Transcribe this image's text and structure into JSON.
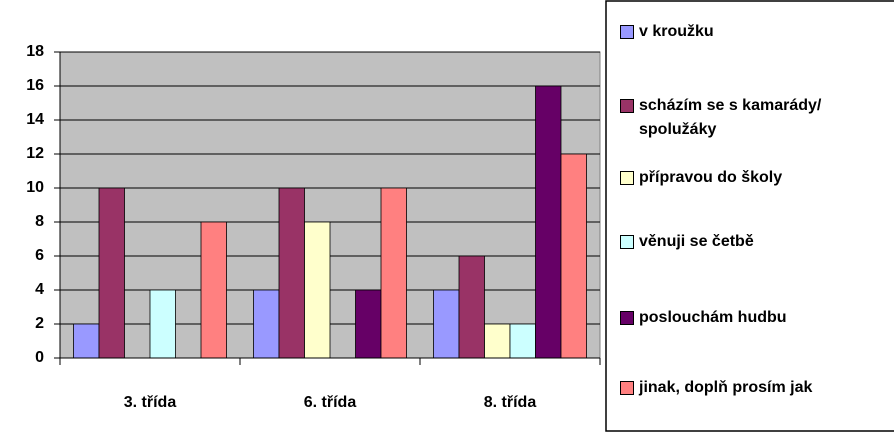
{
  "chart_data": {
    "type": "bar",
    "categories": [
      "3. třída",
      "6. třída",
      "8. třída"
    ],
    "series": [
      {
        "name": "v kroužku",
        "color": "#9999ff",
        "values": [
          2,
          4,
          4
        ]
      },
      {
        "name": "scházím se s kamarády/ spolužáky",
        "color": "#993366",
        "values": [
          10,
          10,
          6
        ]
      },
      {
        "name": "přípravou do školy",
        "color": "#ffffcc",
        "values": [
          0,
          8,
          2
        ]
      },
      {
        "name": "věnuji se četbě",
        "color": "#ccffff",
        "values": [
          4,
          0,
          2
        ]
      },
      {
        "name": "poslouchám hudbu",
        "color": "#660066",
        "values": [
          0,
          4,
          16
        ]
      },
      {
        "name": "jinak, doplň prosím jak",
        "color": "#ff8080",
        "values": [
          8,
          10,
          12
        ]
      }
    ],
    "ylim": [
      0,
      18
    ],
    "yticks": [
      0,
      2,
      4,
      6,
      8,
      10,
      12,
      14,
      16,
      18
    ],
    "grid": true,
    "legend": "right"
  }
}
